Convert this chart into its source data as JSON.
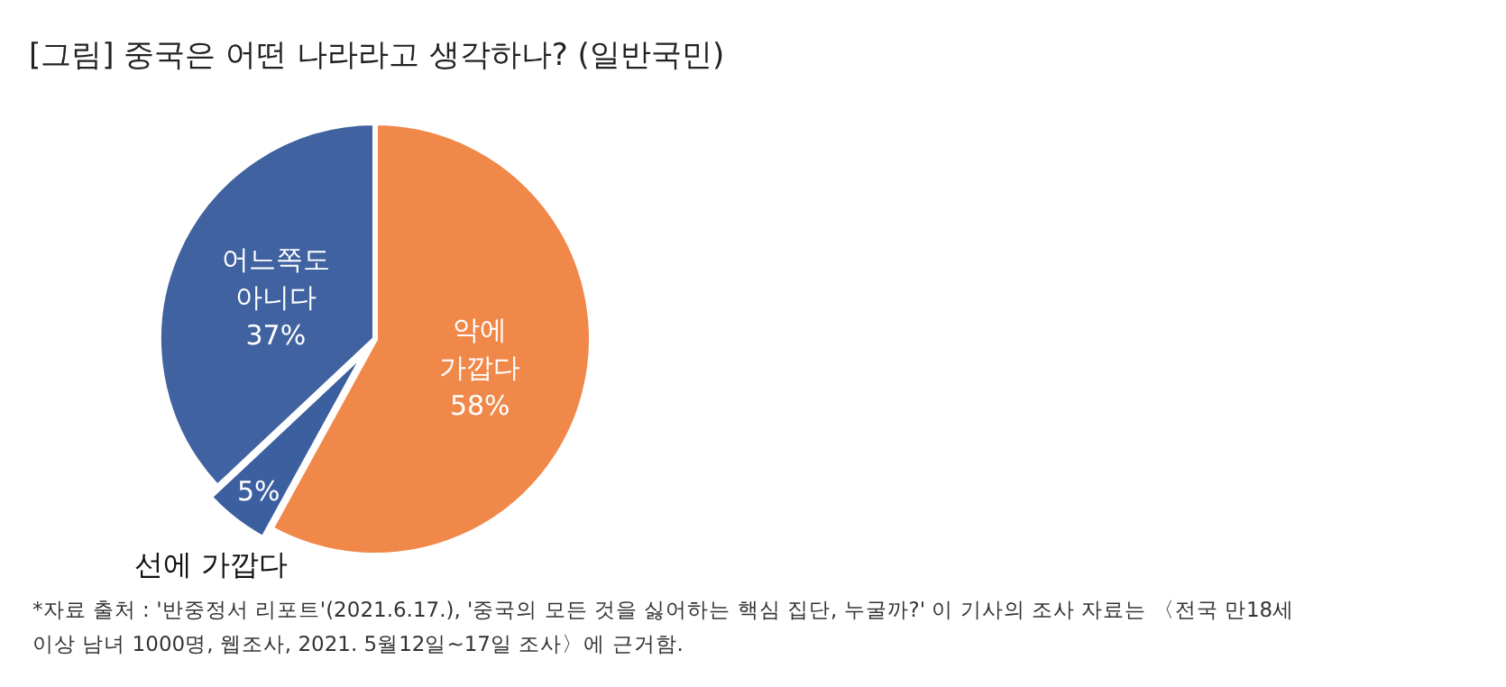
{
  "chart_data": {
    "type": "pie",
    "title": "[그림] 중국은 어떤 나라라고 생각하나? (일반국민)",
    "categories": [
      "악에 가깝다",
      "선에 가깝다",
      "어느쪽도 아니다"
    ],
    "values": [
      58,
      5,
      37
    ],
    "colors": [
      "#f0884a",
      "#3c5fa0",
      "#4062a0"
    ],
    "value_labels": [
      "58%",
      "5%",
      "37%"
    ],
    "annotations": [
      "*자료 출처 : '반중정서 리포트'(2021.6.17.), '중국의 모든 것을 싫어하는 핵심 집단, 누굴까?' 이 기사의 조사 자료는 〈전국 만18세 이상 남녀 1000명, 웹조사, 2021. 5월12일~17일 조사〉에 근거함."
    ]
  }
}
